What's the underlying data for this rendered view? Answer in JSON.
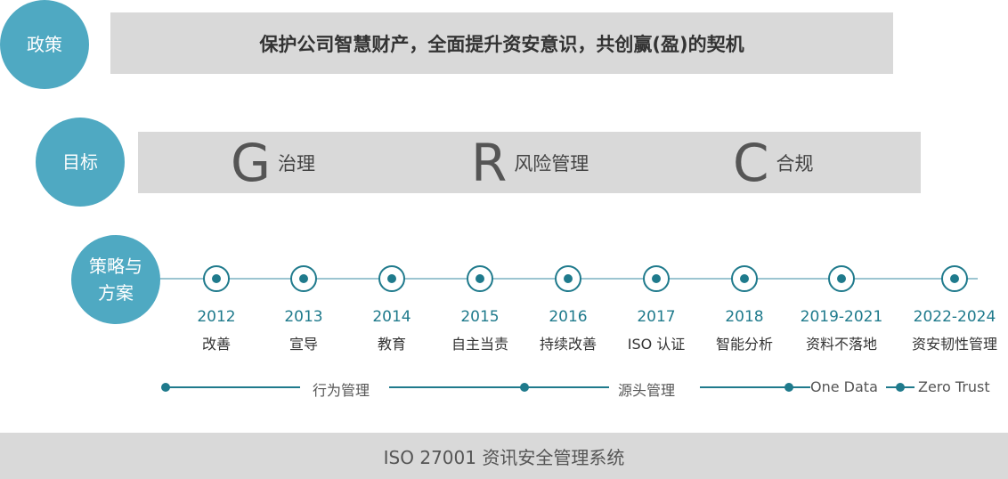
{
  "policy": {
    "label": "政策",
    "text": "保护公司智慧财产，全面提升资安意识，共创赢(盈)的契机"
  },
  "goal": {
    "label": "目标",
    "items": [
      {
        "letter": "G",
        "text": "治理"
      },
      {
        "letter": "R",
        "text": "风险管理"
      },
      {
        "letter": "C",
        "text": "合规"
      }
    ]
  },
  "strategy": {
    "label_line1": "策略与",
    "label_line2": "方案"
  },
  "timeline": [
    {
      "year": "2012",
      "label": "改善"
    },
    {
      "year": "2013",
      "label": "宣导"
    },
    {
      "year": "2014",
      "label": "教育"
    },
    {
      "year": "2015",
      "label": "自主当责"
    },
    {
      "year": "2016",
      "label": "持续改善"
    },
    {
      "year": "2017",
      "label": "ISO 认证"
    },
    {
      "year": "2018",
      "label": "智能分析"
    },
    {
      "year": "2019-2021",
      "label": "资料不落地"
    },
    {
      "year": "2022-2024",
      "label": "资安韧性管理"
    }
  ],
  "phases": [
    "行为管理",
    "源头管理",
    "One Data",
    "Zero Trust"
  ],
  "footer": "ISO 27001 资讯安全管理系统",
  "colors": {
    "circle": "#4fa9c2",
    "accent": "#1f7a8c",
    "band": "#d9d9d9"
  }
}
